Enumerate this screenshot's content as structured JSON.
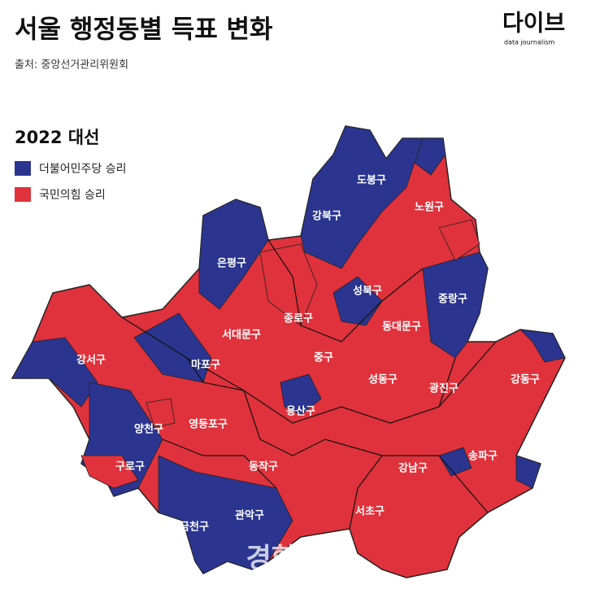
{
  "header": {
    "title": "서울 행정동별 득표 변화",
    "source": "출처: 중앙선거관리위원회",
    "logo": "다이브",
    "logo_sub": "data journalism"
  },
  "map": {
    "subtitle": "2022 대선",
    "legend": [
      {
        "label": "더불어민주당 승리",
        "color": "#2b3590"
      },
      {
        "label": "국민의힘 승리",
        "color": "#e0323c"
      }
    ],
    "districts": [
      "도봉구",
      "강북구",
      "노원구",
      "은평구",
      "성북구",
      "중랑구",
      "종로구",
      "동대문구",
      "서대문구",
      "강서구",
      "마포구",
      "중구",
      "성동구",
      "광진구",
      "강동구",
      "용산구",
      "양천구",
      "영등포구",
      "구로구",
      "동작구",
      "송파구",
      "강남구",
      "서초구",
      "금천구",
      "관악구"
    ],
    "watermark": "경향신문"
  }
}
